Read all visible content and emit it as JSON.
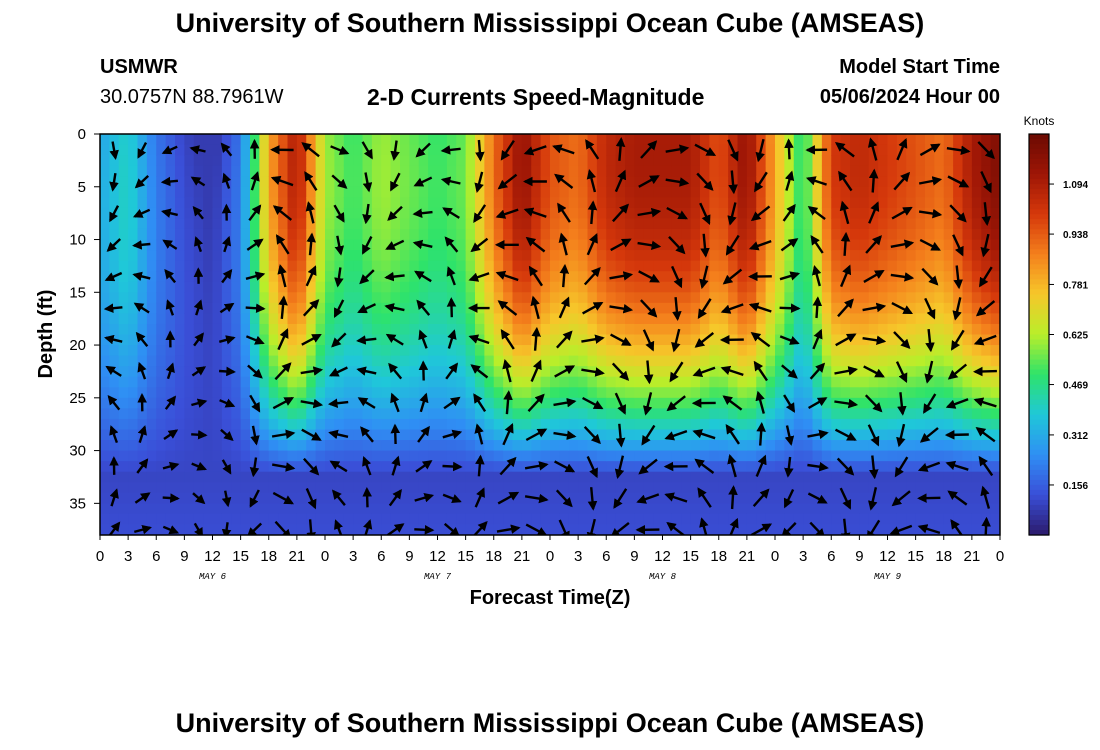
{
  "header": {
    "title_top": "University of Southern Mississippi Ocean Cube (AMSEAS)",
    "station": "USMWR",
    "coords": "30.0757N  88.7961W",
    "subtitle": "2-D Currents Speed-Magnitude",
    "model_start_label": "Model Start Time",
    "model_start_value": "05/06/2024 Hour 00",
    "title_bottom": "University of Southern Mississippi Ocean Cube (AMSEAS)"
  },
  "chart_data": {
    "type": "heatmap",
    "title": "2-D Currents Speed-Magnitude",
    "xlabel": "Forecast Time(Z)",
    "ylabel": "Depth (ft)",
    "x_range_hours": [
      0,
      96
    ],
    "ylim": [
      0,
      38
    ],
    "x_ticks": [
      "0",
      "3",
      "6",
      "9",
      "12",
      "15",
      "18",
      "21",
      "0",
      "3",
      "6",
      "9",
      "12",
      "15",
      "18",
      "21",
      "0",
      "3",
      "6",
      "9",
      "12",
      "15",
      "18",
      "21",
      "0",
      "3",
      "6",
      "9",
      "12",
      "15",
      "18",
      "21",
      "0"
    ],
    "y_ticks": [
      0,
      5,
      10,
      15,
      20,
      25,
      30,
      35
    ],
    "day_labels": [
      "MAY 6",
      "MAY 7",
      "MAY 8",
      "MAY 9"
    ],
    "colorbar": {
      "unit": "Knots",
      "ticks": [
        0.156,
        0.312,
        0.469,
        0.625,
        0.781,
        0.938,
        1.094
      ],
      "range": [
        0,
        1.25
      ],
      "colors": [
        "#2b1a6b",
        "#3a4fd8",
        "#2f8ff4",
        "#1fc8d8",
        "#2ee36a",
        "#b9ee2a",
        "#f6c72a",
        "#f47f1c",
        "#d5380b",
        "#9e1606",
        "#6b0a02"
      ]
    },
    "surface_speed_series": {
      "time_hours": [
        0,
        3,
        6,
        9,
        12,
        15,
        18,
        21,
        24,
        27,
        30,
        33,
        36,
        39,
        42,
        45,
        48,
        51,
        54,
        57,
        60,
        63,
        66,
        69,
        72,
        75,
        78,
        81,
        84,
        87,
        90,
        93,
        96
      ],
      "values": [
        0.3,
        0.4,
        0.2,
        0.1,
        0.05,
        0.2,
        0.8,
        1.1,
        0.6,
        0.5,
        0.6,
        0.55,
        0.5,
        0.55,
        0.9,
        1.15,
        0.95,
        0.9,
        1.05,
        1.1,
        1.1,
        1.1,
        0.95,
        1.15,
        0.8,
        0.45,
        1.0,
        1.05,
        1.0,
        0.95,
        0.9,
        1.1,
        1.2
      ]
    }
  }
}
